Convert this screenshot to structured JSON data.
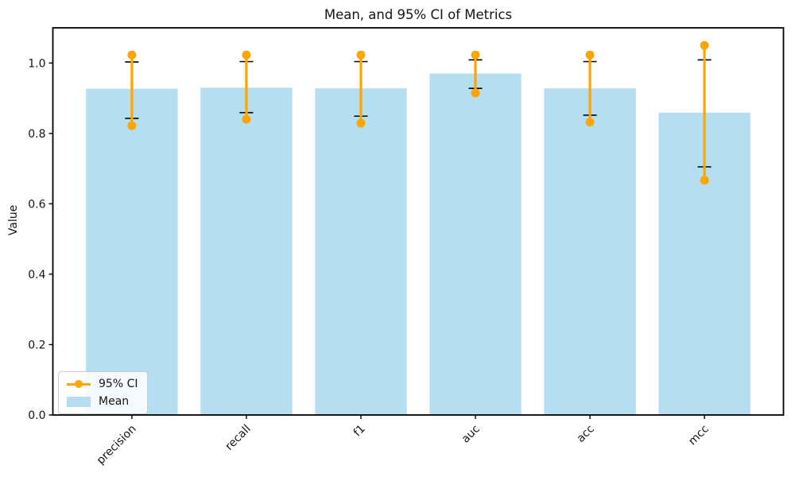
{
  "figure": {
    "background": "#ffffff"
  },
  "chart_data": {
    "type": "bar",
    "title": "Mean, and 95% CI of Metrics",
    "xlabel": "",
    "ylabel": "Value",
    "categories": [
      "precision",
      "recall",
      "f1",
      "auc",
      "acc",
      "mcc"
    ],
    "series": [
      {
        "name": "Mean",
        "values": [
          0.927,
          0.93,
          0.928,
          0.97,
          0.928,
          0.859
        ]
      }
    ],
    "ci_95": {
      "name": "95% CI",
      "low": [
        0.822,
        0.84,
        0.829,
        0.915,
        0.832,
        0.667
      ],
      "high": [
        1.023,
        1.023,
        1.023,
        1.023,
        1.023,
        1.05
      ]
    },
    "error_caps": {
      "low": [
        0.843,
        0.859,
        0.849,
        0.928,
        0.852,
        0.705
      ],
      "high": [
        1.003,
        1.004,
        1.004,
        1.009,
        1.004,
        1.009
      ]
    },
    "yticks": [
      0.0,
      0.2,
      0.4,
      0.6,
      0.8,
      1.0
    ],
    "ylim": [
      0,
      1.1
    ],
    "xlim": [
      -0.69,
      5.69
    ],
    "grid": false,
    "legend": {
      "position": "lower left",
      "entries": [
        "95% CI",
        "Mean"
      ]
    },
    "colors": {
      "bar": "#b5def0",
      "ci": "#ffa500",
      "error": "#000000",
      "spine": "#000000",
      "text": "#151515"
    }
  }
}
